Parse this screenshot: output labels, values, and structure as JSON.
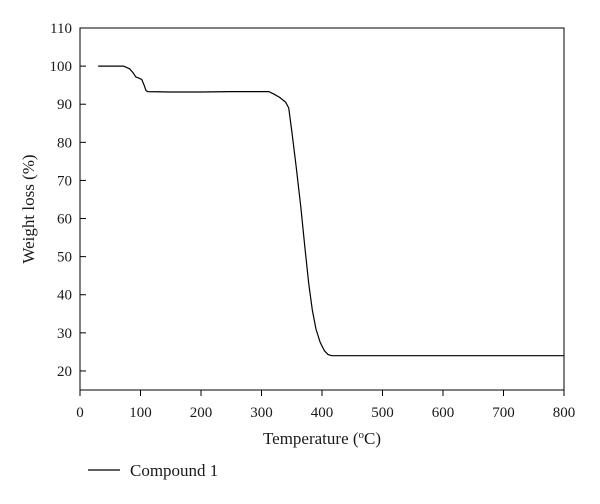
{
  "chart_data": {
    "type": "line",
    "xlabel": "Temperature (",
    "xlabel_sup": "o",
    "xlabel_end": "C)",
    "ylabel": "Weight loss (%)",
    "xlim": [
      0,
      800
    ],
    "ylim": [
      15,
      110
    ],
    "x_ticks": [
      0,
      100,
      200,
      300,
      400,
      500,
      600,
      700,
      800
    ],
    "y_ticks": [
      20,
      30,
      40,
      50,
      60,
      70,
      80,
      90,
      100,
      110
    ],
    "grid": false,
    "legend_position": "bottom-left",
    "series": [
      {
        "name": "Compound 1",
        "color": "#000000",
        "points": [
          [
            30,
            100
          ],
          [
            60,
            100
          ],
          [
            72,
            100
          ],
          [
            82,
            99.3
          ],
          [
            88,
            98.2
          ],
          [
            92,
            97.2
          ],
          [
            98,
            96.8
          ],
          [
            102,
            96.5
          ],
          [
            106,
            95
          ],
          [
            109,
            93.6
          ],
          [
            112,
            93.3
          ],
          [
            150,
            93.2
          ],
          [
            200,
            93.2
          ],
          [
            250,
            93.3
          ],
          [
            300,
            93.3
          ],
          [
            312,
            93.3
          ],
          [
            320,
            92.7
          ],
          [
            330,
            91.8
          ],
          [
            340,
            90.5
          ],
          [
            345,
            89
          ],
          [
            350,
            83
          ],
          [
            357,
            74
          ],
          [
            365,
            63
          ],
          [
            372,
            52
          ],
          [
            378,
            43
          ],
          [
            384,
            36
          ],
          [
            390,
            31
          ],
          [
            397,
            27.5
          ],
          [
            404,
            25.3
          ],
          [
            410,
            24.3
          ],
          [
            416,
            24
          ],
          [
            450,
            24
          ],
          [
            500,
            24
          ],
          [
            600,
            24
          ],
          [
            700,
            24
          ],
          [
            800,
            24
          ]
        ]
      }
    ]
  }
}
